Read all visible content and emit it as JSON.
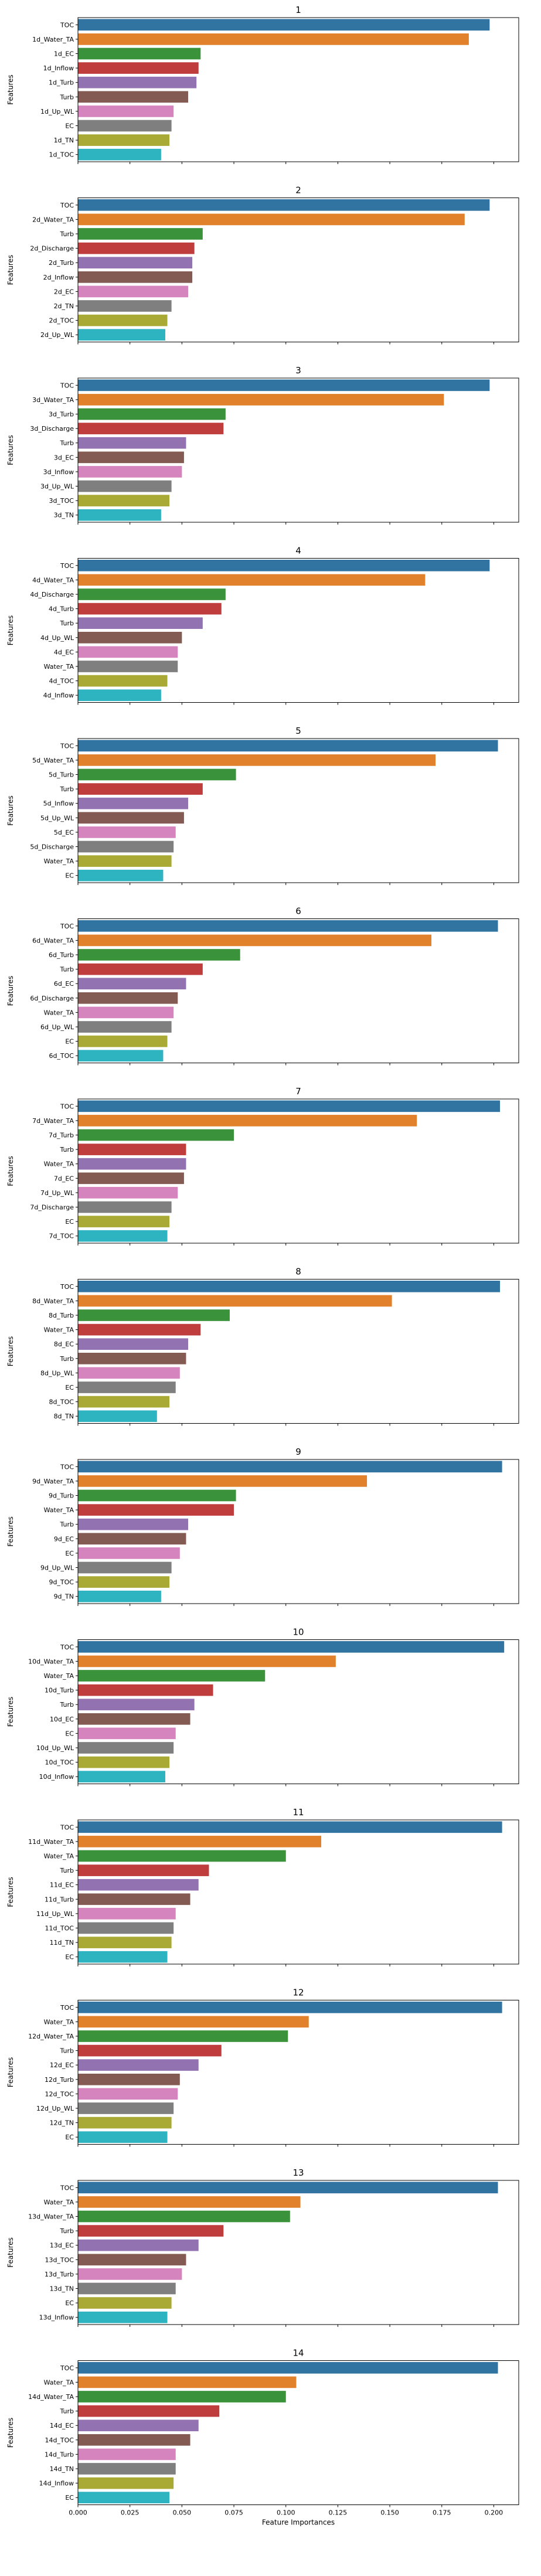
{
  "colors": [
    "#3274a1",
    "#e1812c",
    "#3a923a",
    "#c03d3e",
    "#9372b2",
    "#845b53",
    "#d684bd",
    "#7f7f7f",
    "#a9aa35",
    "#2eb3c1"
  ],
  "chart_data": {
    "type": "bar",
    "orientation": "horizontal",
    "xlabel": "Feature Importances",
    "ylabel": "Features",
    "xlim": [
      0.0,
      0.212
    ],
    "xticks": [
      0.0,
      0.025,
      0.05,
      0.075,
      0.1,
      0.125,
      0.15,
      0.175,
      0.2
    ],
    "xtick_labels": [
      "0.000",
      "0.025",
      "0.050",
      "0.075",
      "0.100",
      "0.125",
      "0.150",
      "0.175",
      "0.200"
    ],
    "panels": [
      {
        "title": "1",
        "features": [
          "TOC",
          "1d_Water_TA",
          "1d_EC",
          "1d_Inflow",
          "1d_Turb",
          "Turb",
          "1d_Up_WL",
          "EC",
          "1d_TN",
          "1d_TOC"
        ],
        "values": [
          0.198,
          0.188,
          0.059,
          0.058,
          0.057,
          0.053,
          0.046,
          0.045,
          0.044,
          0.04
        ]
      },
      {
        "title": "2",
        "features": [
          "TOC",
          "2d_Water_TA",
          "Turb",
          "2d_Discharge",
          "2d_Turb",
          "2d_Inflow",
          "2d_EC",
          "2d_TN",
          "2d_TOC",
          "2d_Up_WL"
        ],
        "values": [
          0.198,
          0.186,
          0.06,
          0.056,
          0.055,
          0.055,
          0.053,
          0.045,
          0.043,
          0.042
        ]
      },
      {
        "title": "3",
        "features": [
          "TOC",
          "3d_Water_TA",
          "3d_Turb",
          "3d_Discharge",
          "Turb",
          "3d_EC",
          "3d_Inflow",
          "3d_Up_WL",
          "3d_TOC",
          "3d_TN"
        ],
        "values": [
          0.198,
          0.176,
          0.071,
          0.07,
          0.052,
          0.051,
          0.05,
          0.045,
          0.044,
          0.04
        ]
      },
      {
        "title": "4",
        "features": [
          "TOC",
          "4d_Water_TA",
          "4d_Discharge",
          "4d_Turb",
          "Turb",
          "4d_Up_WL",
          "4d_EC",
          "Water_TA",
          "4d_TOC",
          "4d_Inflow"
        ],
        "values": [
          0.198,
          0.167,
          0.071,
          0.069,
          0.06,
          0.05,
          0.048,
          0.048,
          0.043,
          0.04
        ]
      },
      {
        "title": "5",
        "features": [
          "TOC",
          "5d_Water_TA",
          "5d_Turb",
          "Turb",
          "5d_Inflow",
          "5d_Up_WL",
          "5d_EC",
          "5d_Discharge",
          "Water_TA",
          "EC"
        ],
        "values": [
          0.202,
          0.172,
          0.076,
          0.06,
          0.053,
          0.051,
          0.047,
          0.046,
          0.045,
          0.041
        ]
      },
      {
        "title": "6",
        "features": [
          "TOC",
          "6d_Water_TA",
          "6d_Turb",
          "Turb",
          "6d_EC",
          "6d_Discharge",
          "Water_TA",
          "6d_Up_WL",
          "EC",
          "6d_TOC"
        ],
        "values": [
          0.202,
          0.17,
          0.078,
          0.06,
          0.052,
          0.048,
          0.046,
          0.045,
          0.043,
          0.041
        ]
      },
      {
        "title": "7",
        "features": [
          "TOC",
          "7d_Water_TA",
          "7d_Turb",
          "Turb",
          "Water_TA",
          "7d_EC",
          "7d_Up_WL",
          "7d_Discharge",
          "EC",
          "7d_TOC"
        ],
        "values": [
          0.203,
          0.163,
          0.075,
          0.052,
          0.052,
          0.051,
          0.048,
          0.045,
          0.044,
          0.043
        ]
      },
      {
        "title": "8",
        "features": [
          "TOC",
          "8d_Water_TA",
          "8d_Turb",
          "Water_TA",
          "8d_EC",
          "Turb",
          "8d_Up_WL",
          "EC",
          "8d_TOC",
          "8d_TN"
        ],
        "values": [
          0.203,
          0.151,
          0.073,
          0.059,
          0.053,
          0.052,
          0.049,
          0.047,
          0.044,
          0.038
        ]
      },
      {
        "title": "9",
        "features": [
          "TOC",
          "9d_Water_TA",
          "9d_Turb",
          "Water_TA",
          "Turb",
          "9d_EC",
          "EC",
          "9d_Up_WL",
          "9d_TOC",
          "9d_TN"
        ],
        "values": [
          0.204,
          0.139,
          0.076,
          0.075,
          0.053,
          0.052,
          0.049,
          0.045,
          0.044,
          0.04
        ]
      },
      {
        "title": "10",
        "features": [
          "TOC",
          "10d_Water_TA",
          "Water_TA",
          "10d_Turb",
          "Turb",
          "10d_EC",
          "EC",
          "10d_Up_WL",
          "10d_TOC",
          "10d_Inflow"
        ],
        "values": [
          0.205,
          0.124,
          0.09,
          0.065,
          0.056,
          0.054,
          0.047,
          0.046,
          0.044,
          0.042
        ]
      },
      {
        "title": "11",
        "features": [
          "TOC",
          "11d_Water_TA",
          "Water_TA",
          "Turb",
          "11d_EC",
          "11d_Turb",
          "11d_Up_WL",
          "11d_TOC",
          "11d_TN",
          "EC"
        ],
        "values": [
          0.204,
          0.117,
          0.1,
          0.063,
          0.058,
          0.054,
          0.047,
          0.046,
          0.045,
          0.043
        ]
      },
      {
        "title": "12",
        "features": [
          "TOC",
          "Water_TA",
          "12d_Water_TA",
          "Turb",
          "12d_EC",
          "12d_Turb",
          "12d_TOC",
          "12d_Up_WL",
          "12d_TN",
          "EC"
        ],
        "values": [
          0.204,
          0.111,
          0.101,
          0.069,
          0.058,
          0.049,
          0.048,
          0.046,
          0.045,
          0.043
        ]
      },
      {
        "title": "13",
        "features": [
          "TOC",
          "Water_TA",
          "13d_Water_TA",
          "Turb",
          "13d_EC",
          "13d_TOC",
          "13d_Turb",
          "13d_TN",
          "EC",
          "13d_Inflow"
        ],
        "values": [
          0.202,
          0.107,
          0.102,
          0.07,
          0.058,
          0.052,
          0.05,
          0.047,
          0.045,
          0.043
        ]
      },
      {
        "title": "14",
        "features": [
          "TOC",
          "Water_TA",
          "14d_Water_TA",
          "Turb",
          "14d_EC",
          "14d_TOC",
          "14d_Turb",
          "14d_TN",
          "14d_Inflow",
          "EC"
        ],
        "values": [
          0.202,
          0.105,
          0.1,
          0.068,
          0.058,
          0.054,
          0.047,
          0.047,
          0.046,
          0.044
        ]
      }
    ]
  }
}
